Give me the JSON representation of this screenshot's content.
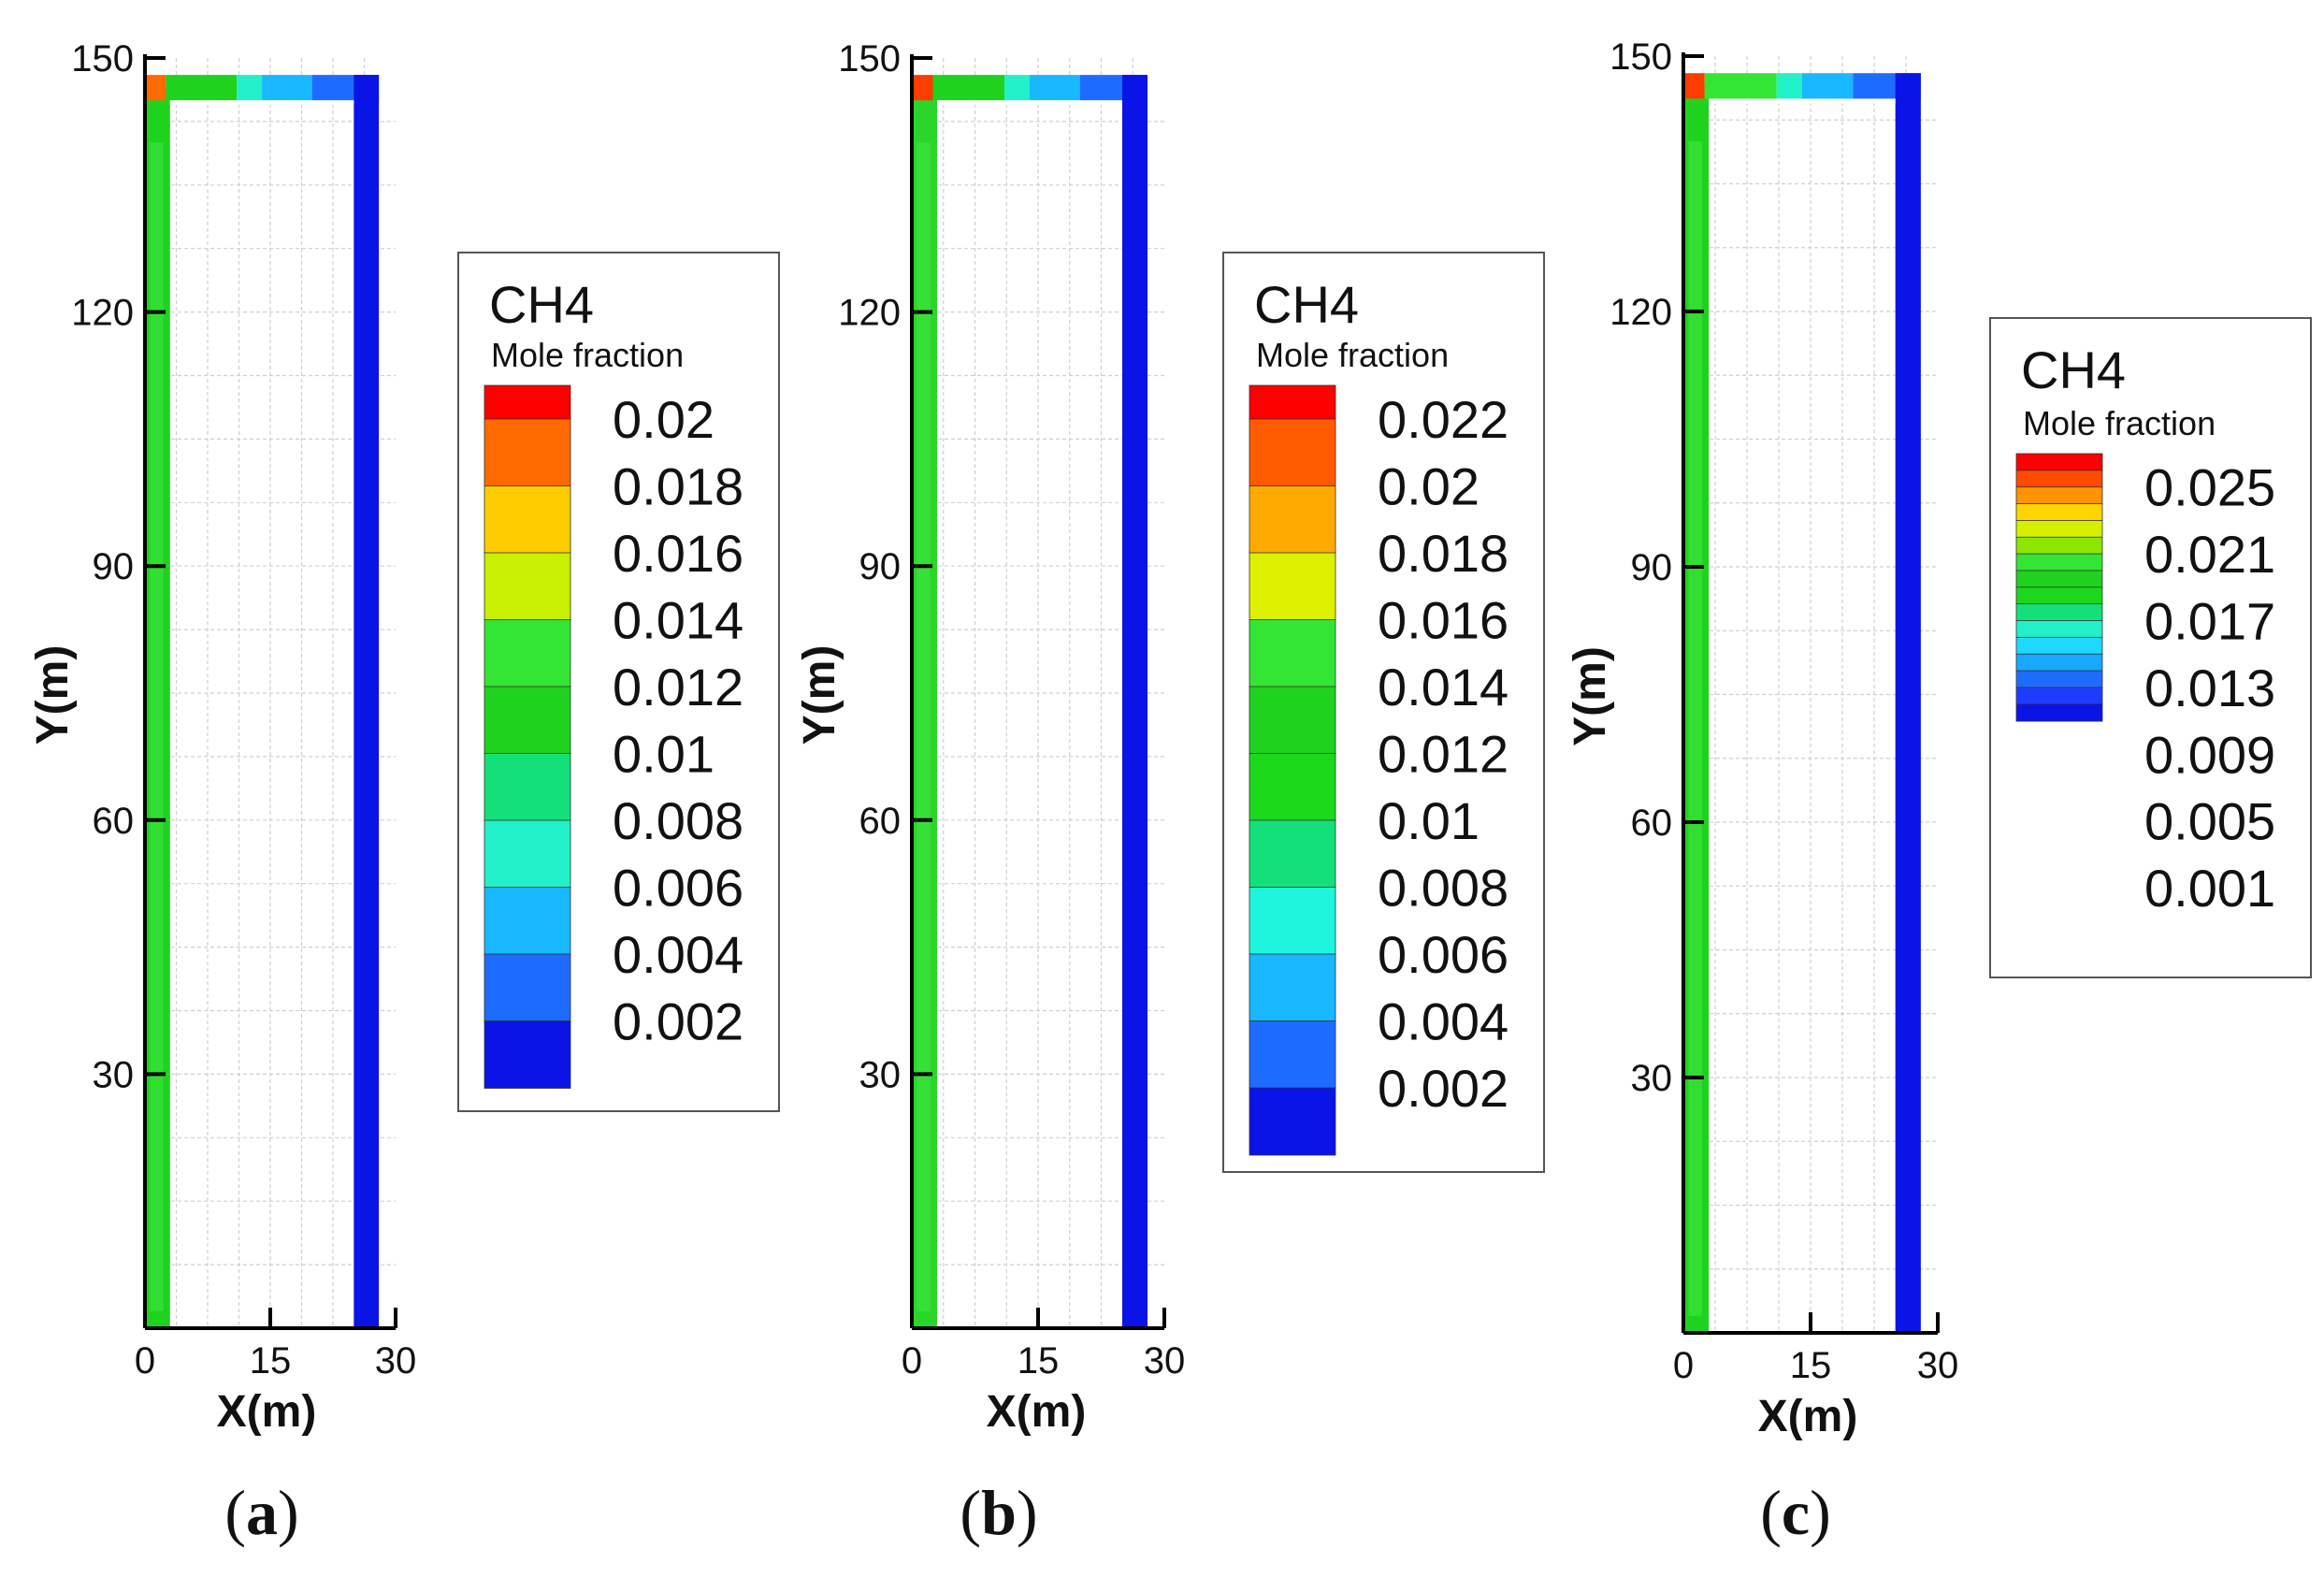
{
  "chart_data": [
    {
      "type": "heatmap",
      "panel_label": "a",
      "variable": "CH4",
      "quantity": "Mole fraction",
      "xlabel": "X(m)",
      "ylabel": "Y(m)",
      "xlim": [
        0,
        30
      ],
      "ylim": [
        0,
        150
      ],
      "x_ticks": [
        0,
        15,
        30
      ],
      "y_ticks": [
        30,
        60,
        90,
        120,
        150
      ],
      "grid": true,
      "legend_levels": [
        0.02,
        0.018,
        0.016,
        0.014,
        0.012,
        0.01,
        0.008,
        0.006,
        0.004,
        0.002
      ],
      "legend_colors": [
        "#ff0000",
        "#ff6a00",
        "#ffcc00",
        "#c8f000",
        "#33e633",
        "#1ed21e",
        "#14e07a",
        "#22f0c8",
        "#17b8ff",
        "#1e6cff",
        "#0a14e6"
      ],
      "field": {
        "left_wall_color": "#1ed21e",
        "top_duct_colors": [
          "#ff6a00",
          "#1ed21e",
          "#22f0c8",
          "#17b8ff",
          "#1e6cff"
        ],
        "right_wall_color": "#0a14e6"
      }
    },
    {
      "type": "heatmap",
      "panel_label": "b",
      "variable": "CH4",
      "quantity": "Mole fraction",
      "xlabel": "X(m)",
      "ylabel": "Y(m)",
      "xlim": [
        0,
        30
      ],
      "ylim": [
        0,
        150
      ],
      "x_ticks": [
        0,
        15,
        30
      ],
      "y_ticks": [
        30,
        60,
        90,
        120,
        150
      ],
      "grid": true,
      "legend_levels": [
        0.022,
        0.02,
        0.018,
        0.016,
        0.014,
        0.012,
        0.01,
        0.008,
        0.006,
        0.004,
        0.002
      ],
      "legend_colors": [
        "#ff0000",
        "#ff5a00",
        "#ffaa00",
        "#dcf000",
        "#33e633",
        "#1ed21e",
        "#1bd81b",
        "#14e07a",
        "#1ef5dc",
        "#17b8ff",
        "#1e6cff",
        "#0a14e6"
      ],
      "field": {
        "left_wall_color": "#2bd62b",
        "top_duct_colors": [
          "#ff3c00",
          "#1ed21e",
          "#22f0c8",
          "#17b8ff",
          "#1e6cff"
        ],
        "right_wall_color": "#0a14e6"
      }
    },
    {
      "type": "heatmap",
      "panel_label": "c",
      "variable": "CH4",
      "quantity": "Mole fraction",
      "xlabel": "X(m)",
      "ylabel": "Y(m)",
      "xlim": [
        0,
        30
      ],
      "ylim": [
        0,
        150
      ],
      "x_ticks": [
        0,
        15,
        30
      ],
      "y_ticks": [
        30,
        60,
        90,
        120,
        150
      ],
      "grid": true,
      "legend_levels": [
        0.025,
        0.021,
        0.017,
        0.013,
        0.009,
        0.005,
        0.001
      ],
      "legend_colors": [
        "#ff0000",
        "#ff4a00",
        "#ff9400",
        "#ffd400",
        "#d4f000",
        "#8ce600",
        "#33e633",
        "#1ed21e",
        "#1bd81b",
        "#14e07a",
        "#22f0c8",
        "#1ed8ff",
        "#17a8ff",
        "#1e6cff",
        "#1e3cff",
        "#0a14e6"
      ],
      "field": {
        "left_wall_color": "#1ed21e",
        "top_duct_colors": [
          "#ff3c00",
          "#33e633",
          "#22f0c8",
          "#17b8ff",
          "#1e6cff"
        ],
        "right_wall_color": "#0a14e6"
      }
    }
  ]
}
